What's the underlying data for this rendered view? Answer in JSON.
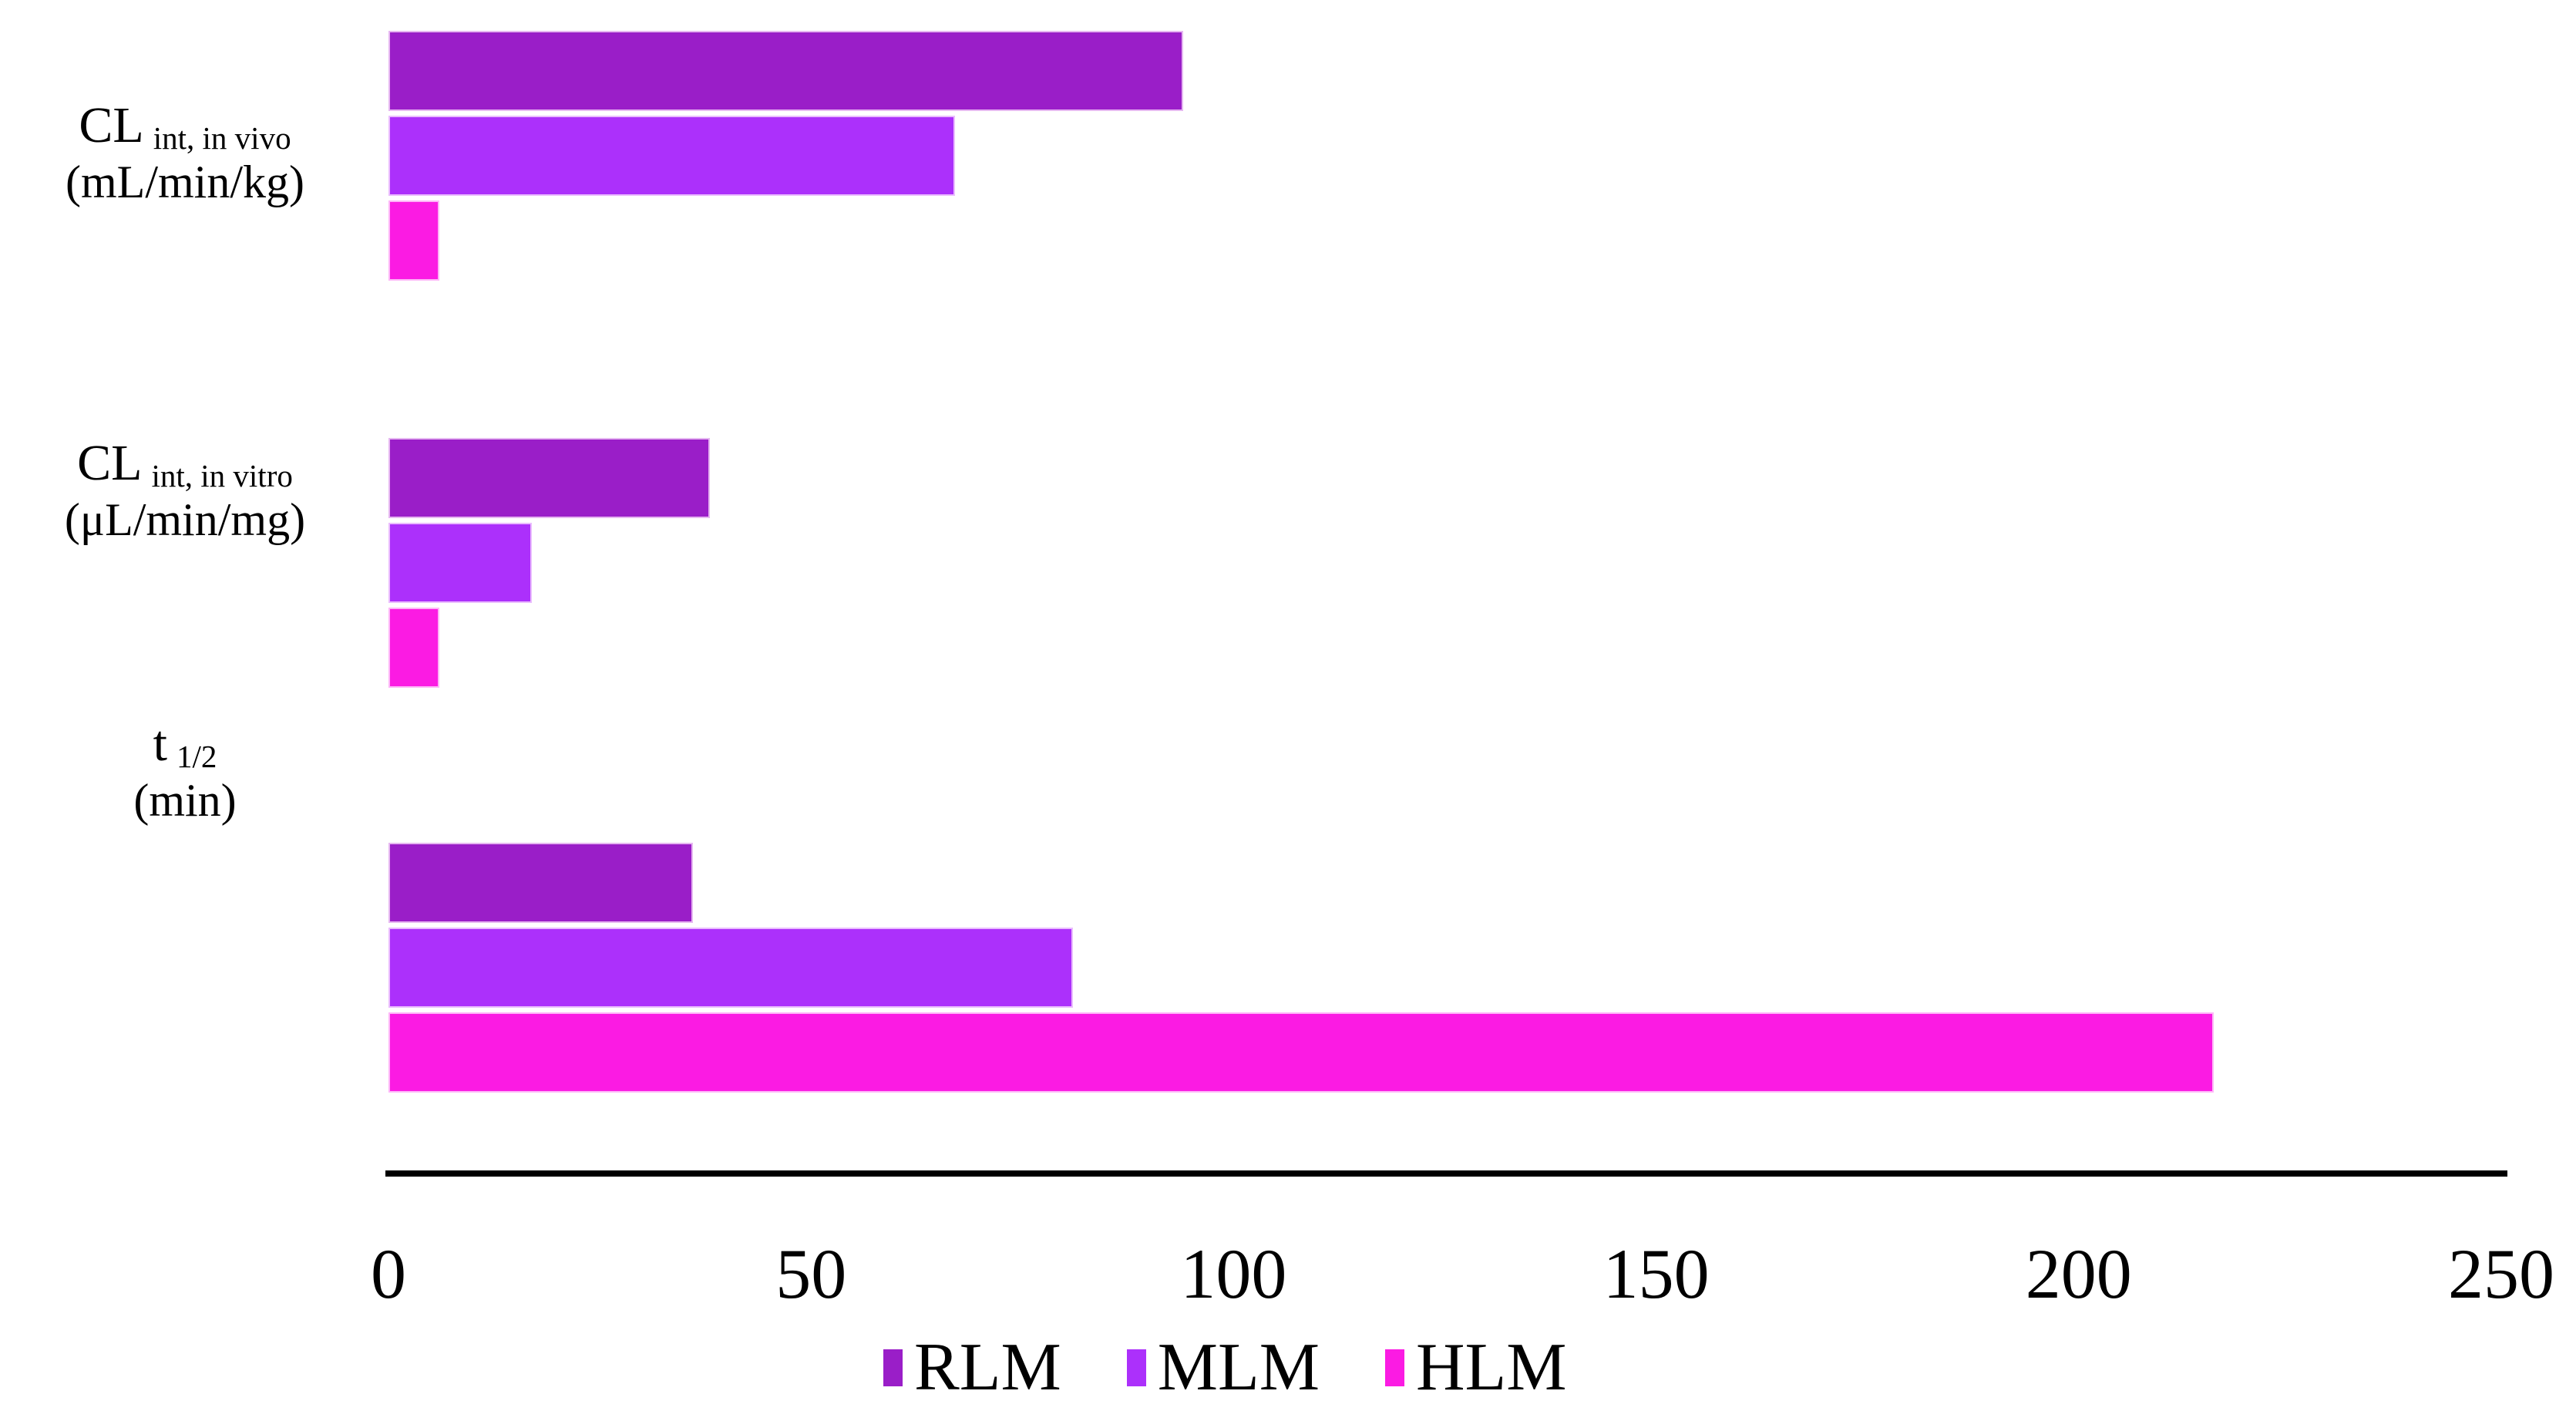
{
  "chart_data": {
    "type": "bar",
    "orientation": "horizontal",
    "title": "",
    "categories": [
      {
        "label_main": "CL",
        "label_sub": "int, in vivo",
        "label_unit": "(mL/min/kg)"
      },
      {
        "label_main": "CL",
        "label_sub": "int, in vitro",
        "label_unit": "(μL/min/mg)"
      },
      {
        "label_main": "t",
        "label_sub": "1/2",
        "label_unit": "(min)"
      }
    ],
    "series": [
      {
        "name": "RLM",
        "color": "#9A1EC8",
        "values": [
          94,
          38,
          36
        ]
      },
      {
        "name": "MLM",
        "color": "#AC30FB",
        "values": [
          67,
          17,
          81
        ]
      },
      {
        "name": "HLM",
        "color": "#FB1BE3",
        "values": [
          6,
          6,
          216
        ]
      }
    ],
    "x_axis": {
      "min": 0,
      "max": 250,
      "ticks": [
        0,
        50,
        100,
        150,
        200,
        250
      ]
    },
    "legend": {
      "position": "bottom",
      "entries": [
        "RLM",
        "MLM",
        "HLM"
      ]
    },
    "grid": false,
    "axis_color": "#000000",
    "background": "#FFFFFF"
  }
}
